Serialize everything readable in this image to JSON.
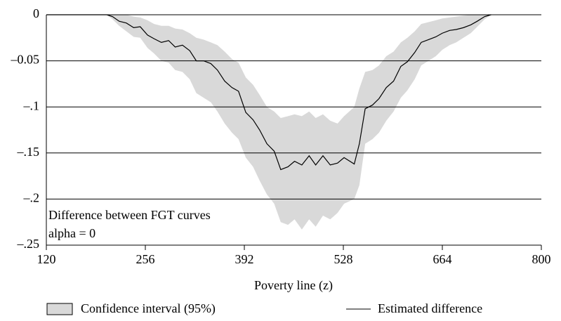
{
  "chart_data": {
    "type": "line",
    "xlabel": "Poverty line (z)",
    "annotations": [
      "Difference between FGT curves",
      "alpha = 0"
    ],
    "x": [
      120,
      203,
      211,
      220,
      230,
      240,
      249,
      259,
      268,
      278,
      288,
      297,
      307,
      317,
      326,
      336,
      346,
      355,
      365,
      375,
      384,
      394,
      404,
      413,
      423,
      433,
      442,
      452,
      461,
      471,
      481,
      490,
      500,
      510,
      520,
      529,
      543,
      550,
      558,
      568,
      577,
      587,
      597,
      607,
      616,
      626,
      635,
      645,
      655,
      664,
      674,
      683,
      693,
      703,
      712,
      722,
      731
    ],
    "series": [
      {
        "name": "Confidence interval (95%)",
        "color": "#d9d9d9",
        "upper": [
          0,
          0,
          0,
          0,
          0,
          -0.002,
          -0.003,
          -0.006,
          -0.01,
          -0.012,
          -0.012,
          -0.015,
          -0.016,
          -0.02,
          -0.025,
          -0.027,
          -0.03,
          -0.033,
          -0.04,
          -0.048,
          -0.052,
          -0.068,
          -0.076,
          -0.087,
          -0.1,
          -0.105,
          -0.112,
          -0.11,
          -0.108,
          -0.11,
          -0.105,
          -0.112,
          -0.108,
          -0.115,
          -0.118,
          -0.11,
          -0.1,
          -0.08,
          -0.062,
          -0.06,
          -0.055,
          -0.045,
          -0.04,
          -0.03,
          -0.025,
          -0.018,
          -0.01,
          -0.008,
          -0.006,
          -0.004,
          -0.003,
          -0.002,
          -0.001,
          0,
          0,
          0,
          0
        ],
        "lower": [
          0,
          0,
          -0.005,
          -0.012,
          -0.018,
          -0.024,
          -0.025,
          -0.036,
          -0.042,
          -0.05,
          -0.052,
          -0.06,
          -0.062,
          -0.07,
          -0.085,
          -0.09,
          -0.095,
          -0.105,
          -0.118,
          -0.128,
          -0.135,
          -0.155,
          -0.165,
          -0.18,
          -0.195,
          -0.205,
          -0.225,
          -0.228,
          -0.222,
          -0.233,
          -0.222,
          -0.23,
          -0.218,
          -0.222,
          -0.215,
          -0.205,
          -0.2,
          -0.185,
          -0.14,
          -0.135,
          -0.128,
          -0.115,
          -0.105,
          -0.09,
          -0.082,
          -0.07,
          -0.055,
          -0.05,
          -0.045,
          -0.038,
          -0.033,
          -0.03,
          -0.025,
          -0.02,
          -0.013,
          -0.005,
          0
        ]
      },
      {
        "name": "Estimated difference",
        "color": "#000000",
        "values": [
          0,
          0,
          -0.002,
          -0.007,
          -0.009,
          -0.014,
          -0.013,
          -0.022,
          -0.026,
          -0.03,
          -0.028,
          -0.035,
          -0.033,
          -0.039,
          -0.05,
          -0.05,
          -0.053,
          -0.06,
          -0.072,
          -0.079,
          -0.083,
          -0.106,
          -0.114,
          -0.125,
          -0.14,
          -0.148,
          -0.168,
          -0.165,
          -0.159,
          -0.163,
          -0.153,
          -0.163,
          -0.153,
          -0.163,
          -0.161,
          -0.155,
          -0.162,
          -0.14,
          -0.102,
          -0.098,
          -0.091,
          -0.079,
          -0.072,
          -0.056,
          -0.051,
          -0.041,
          -0.03,
          -0.027,
          -0.024,
          -0.02,
          -0.017,
          -0.016,
          -0.014,
          -0.011,
          -0.007,
          -0.002,
          0
        ]
      }
    ],
    "xlim": [
      120,
      800
    ],
    "xticks": [
      120,
      256,
      392,
      528,
      664,
      800
    ],
    "ylim": [
      -0.25,
      0
    ],
    "yticks": [
      0,
      {
        "value": -0.05,
        "label": "–0.05"
      },
      {
        "value": -0.1,
        "label": "–.1"
      },
      {
        "value": -0.15,
        "label": "–.15"
      },
      {
        "value": -0.2,
        "label": "–.2"
      },
      {
        "value": -0.25,
        "label": "–.25"
      }
    ],
    "grid": true
  }
}
